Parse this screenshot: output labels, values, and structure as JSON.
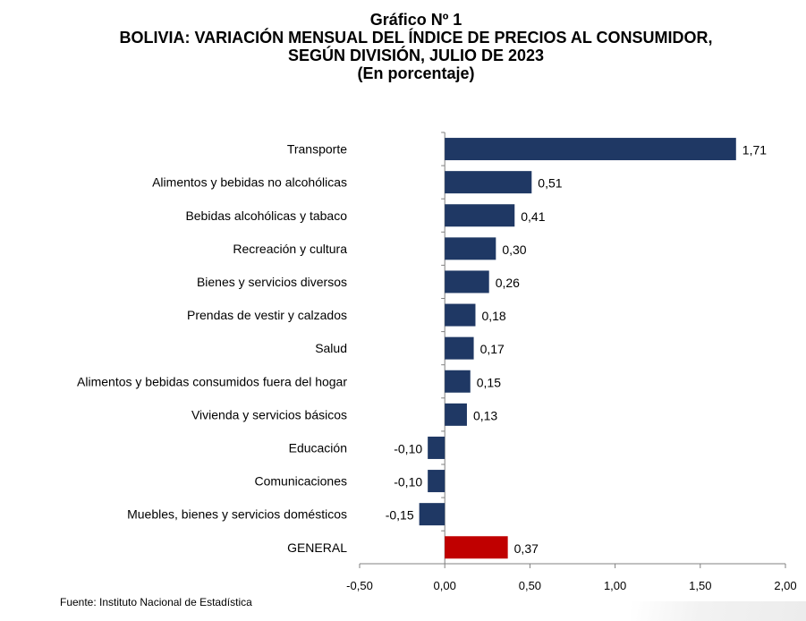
{
  "title": {
    "line1": "Gráfico Nº 1",
    "line2": "BOLIVIA: VARIACIÓN MENSUAL DEL ÍNDICE DE PRECIOS AL CONSUMIDOR,",
    "line3": "SEGÚN DIVISIÓN, JULIO DE 2023",
    "line4": "(En porcentaje)"
  },
  "source": "Fuente: Instituto Nacional de Estadística",
  "colors": {
    "bar": "#1f3864",
    "highlight": "#c00000"
  },
  "chart_data": {
    "type": "bar",
    "orientation": "horizontal",
    "categories": [
      "Transporte",
      "Alimentos y bebidas no alcohólicas",
      "Bebidas alcohólicas y tabaco",
      "Recreación y cultura",
      "Bienes y servicios diversos",
      "Prendas de vestir y calzados",
      "Salud",
      "Alimentos y bebidas consumidos fuera del hogar",
      "Vivienda y servicios básicos",
      "Educación",
      "Comunicaciones",
      "Muebles, bienes y servicios domésticos",
      "GENERAL"
    ],
    "values": [
      1.71,
      0.51,
      0.41,
      0.3,
      0.26,
      0.18,
      0.17,
      0.15,
      0.13,
      -0.1,
      -0.1,
      -0.15,
      0.37
    ],
    "value_labels": [
      "1,71",
      "0,51",
      "0,41",
      "0,30",
      "0,26",
      "0,18",
      "0,17",
      "0,15",
      "0,13",
      "-0,10",
      "-0,10",
      "-0,15",
      "0,37"
    ],
    "highlighted_category": "GENERAL",
    "xlim": [
      -0.5,
      2.0
    ],
    "xticks": [
      -0.5,
      0.0,
      0.5,
      1.0,
      1.5,
      2.0
    ],
    "xtick_labels": [
      "-0,50",
      "0,00",
      "0,50",
      "1,00",
      "1,50",
      "2,00"
    ],
    "grid": false,
    "legend": "none"
  }
}
